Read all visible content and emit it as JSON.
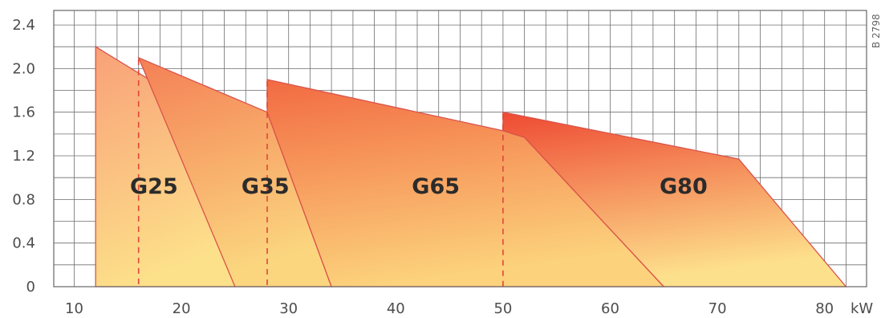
{
  "chart_data": {
    "type": "area",
    "title": "",
    "xlabel": "",
    "ylabel": "",
    "x_unit": "kW",
    "xlim": [
      8,
      83
    ],
    "ylim": [
      0,
      2.4
    ],
    "grid": true,
    "x_ticks": [
      10,
      20,
      30,
      40,
      50,
      60,
      70,
      80
    ],
    "y_ticks": [
      0,
      0.4,
      0.8,
      1.2,
      1.6,
      2.0,
      2.4
    ],
    "y_tick_labels": [
      "0",
      "0.4",
      "0.8",
      "1.2",
      "1.6",
      "2.0",
      "2.4"
    ],
    "series": [
      {
        "name": "G25",
        "colors": [
          "#f8a078",
          "#fde08a"
        ],
        "polygon": [
          [
            12,
            0
          ],
          [
            12,
            2.2
          ],
          [
            22,
            1.6
          ],
          [
            25,
            0
          ]
        ],
        "label_pos": [
          15.2,
          0.9
        ]
      },
      {
        "name": "G35",
        "colors": [
          "#f47f55",
          "#fbd67f"
        ],
        "polygon": [
          [
            16,
            2.1
          ],
          [
            28,
            1.6
          ],
          [
            34,
            0
          ],
          [
            25,
            0
          ]
        ],
        "label_pos": [
          25.6,
          0.9
        ]
      },
      {
        "name": "G65",
        "colors": [
          "#f26a42",
          "#fcd27c"
        ],
        "polygon": [
          [
            28,
            1.6
          ],
          [
            28,
            1.9
          ],
          [
            50,
            1.43
          ],
          [
            52,
            1.37
          ],
          [
            65,
            0
          ],
          [
            34,
            0
          ]
        ],
        "label_pos": [
          41.5,
          0.9
        ]
      },
      {
        "name": "G80",
        "colors": [
          "#ee4a33",
          "#fde08c"
        ],
        "polygon": [
          [
            50,
            1.6
          ],
          [
            72,
            1.17
          ],
          [
            82,
            0
          ],
          [
            65,
            0
          ],
          [
            52,
            1.37
          ],
          [
            50,
            1.43
          ]
        ],
        "label_pos": [
          64.6,
          0.9
        ]
      }
    ],
    "dashed_lines": [
      16,
      28,
      50
    ],
    "side_code": "B 2798"
  }
}
